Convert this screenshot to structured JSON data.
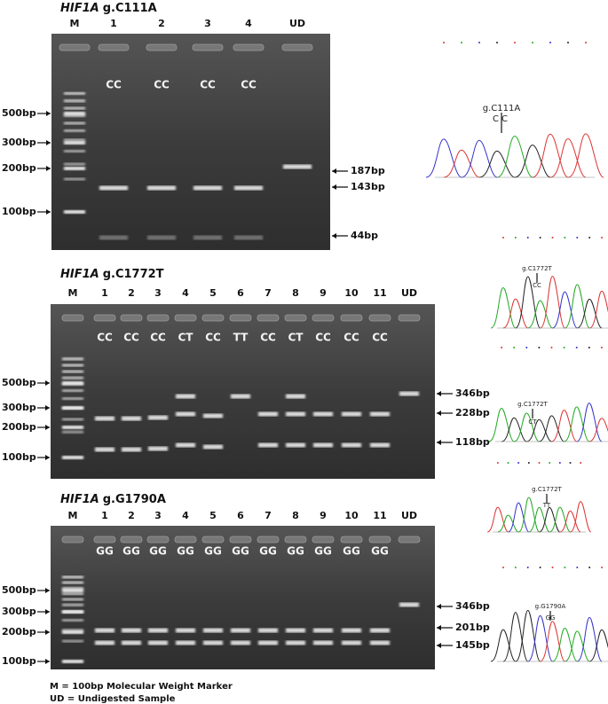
{
  "panels": [
    {
      "gene": "HIF1A",
      "variant": "g.C111A",
      "lanes": [
        "M",
        "1",
        "2",
        "3",
        "4",
        "UD"
      ],
      "genotypes": [
        "CC",
        "CC",
        "CC",
        "CC"
      ],
      "marker_labels": [
        "500bp",
        "300bp",
        "200bp",
        "100bp"
      ],
      "band_labels": [
        "187bp",
        "143bp",
        "44bp"
      ]
    },
    {
      "gene": "HIF1A",
      "variant": "g.C1772T",
      "lanes": [
        "M",
        "1",
        "2",
        "3",
        "4",
        "5",
        "6",
        "7",
        "8",
        "9",
        "10",
        "11",
        "UD"
      ],
      "genotypes": [
        "CC",
        "CC",
        "CC",
        "CT",
        "CC",
        "TT",
        "CC",
        "CT",
        "CC",
        "CC",
        "CC"
      ],
      "marker_labels": [
        "500bp",
        "300bp",
        "200bp",
        "100bp"
      ],
      "band_labels": [
        "346bp",
        "228bp",
        "118bp"
      ]
    },
    {
      "gene": "HIF1A",
      "variant": "g.G1790A",
      "lanes": [
        "M",
        "1",
        "2",
        "3",
        "4",
        "5",
        "6",
        "7",
        "8",
        "9",
        "10",
        "11",
        "UD"
      ],
      "genotypes": [
        "GG",
        "GG",
        "GG",
        "GG",
        "GG",
        "GG",
        "GG",
        "GG",
        "GG",
        "GG",
        "GG"
      ],
      "marker_labels": [
        "500bp",
        "300bp",
        "200bp",
        "100bp"
      ],
      "band_labels": [
        "346bp",
        "201bp",
        "145bp"
      ]
    }
  ],
  "chromatograms": [
    {
      "label": "g.C111A",
      "genotype": "CC"
    },
    {
      "label": "g.C1772T",
      "genotype": "CC"
    },
    {
      "label": "g.C1772T",
      "genotype": "CT"
    },
    {
      "label": "g.C1772T",
      "genotype": "TT"
    },
    {
      "label": "g.G1790A",
      "genotype": "GG"
    }
  ],
  "footnotes": [
    "M = 100bp Molecular Weight Marker",
    "UD = Undigested Sample"
  ]
}
